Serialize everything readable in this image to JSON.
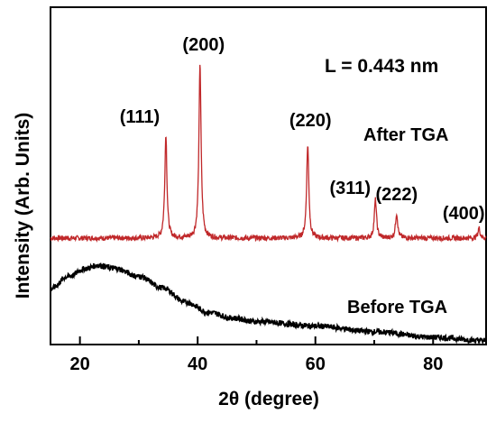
{
  "chart_data": {
    "type": "line",
    "title": "",
    "xlabel": "2θ (degree)",
    "ylabel": "Intensity (Arb. Units)",
    "xlim": [
      15,
      89
    ],
    "xticks": [
      20,
      40,
      60,
      80
    ],
    "yticks": "none",
    "grid": false,
    "legend": "none",
    "annotation": "L = 0.443 nm",
    "series": [
      {
        "name": "After TGA",
        "color": "#c0282a",
        "baseline": 0.0,
        "peaks": [
          {
            "label": "(111)",
            "x": 34.6,
            "height": 0.92
          },
          {
            "label": "(200)",
            "x": 40.4,
            "height": 1.56
          },
          {
            "label": "(220)",
            "x": 58.7,
            "height": 0.83
          },
          {
            "label": "(311)",
            "x": 70.2,
            "height": 0.34
          },
          {
            "label": "(222)",
            "x": 73.8,
            "height": 0.22
          },
          {
            "label": "(400)",
            "x": 87.8,
            "height": 0.09
          }
        ]
      },
      {
        "name": "Before TGA",
        "color": "#000000",
        "points": [
          [
            15,
            -0.45
          ],
          [
            18,
            -0.34
          ],
          [
            21,
            -0.27
          ],
          [
            23,
            -0.24
          ],
          [
            26,
            -0.27
          ],
          [
            30,
            -0.34
          ],
          [
            34,
            -0.44
          ],
          [
            38,
            -0.57
          ],
          [
            42,
            -0.66
          ],
          [
            46,
            -0.71
          ],
          [
            50,
            -0.74
          ],
          [
            60,
            -0.78
          ],
          [
            70,
            -0.83
          ],
          [
            80,
            -0.88
          ],
          [
            89,
            -0.91
          ]
        ]
      }
    ]
  }
}
